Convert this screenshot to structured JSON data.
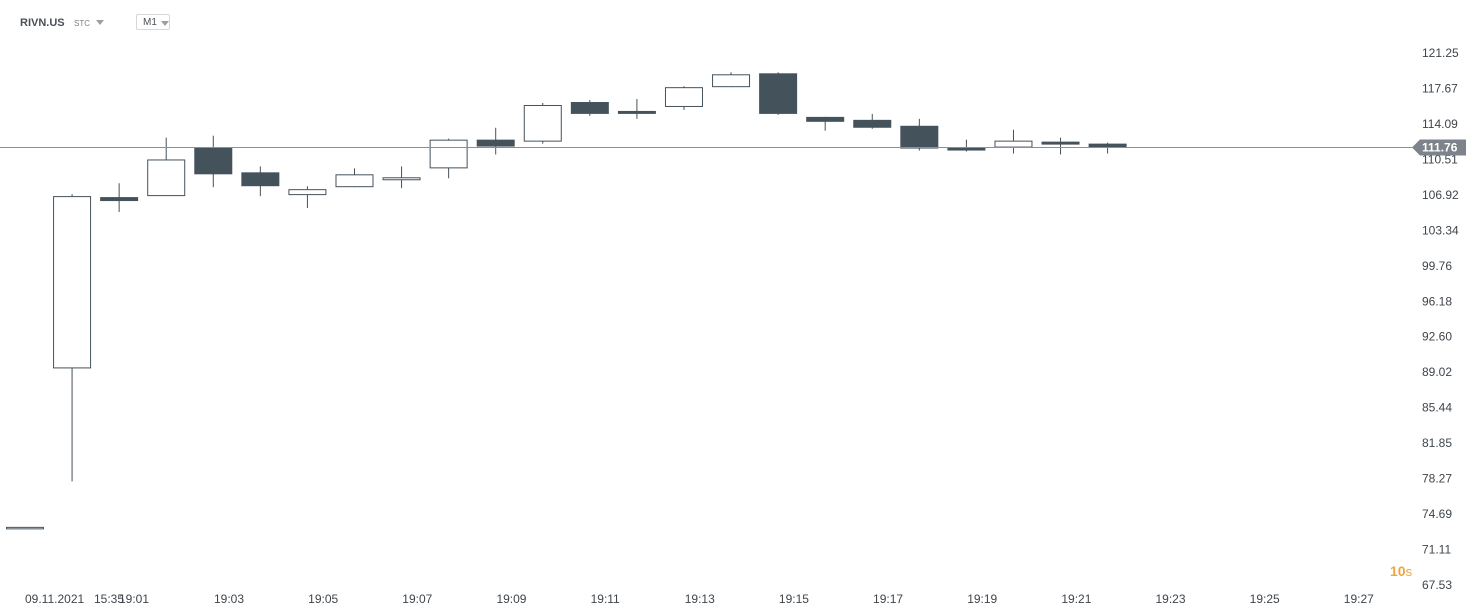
{
  "toolbar": {
    "symbol": "RIVN.US",
    "instrument_type": "STC",
    "timeframe": "M1"
  },
  "countdown": {
    "value": "10",
    "unit": "s"
  },
  "current_price_label": "111.76",
  "colors": {
    "up_fill": "#ffffff",
    "down_fill": "#44525c",
    "outline": "#44525c",
    "price_line": "#8a9096",
    "price_tag_bg": "#7c838a",
    "countdown": "#f0a53a"
  },
  "chart_data": {
    "type": "candlestick",
    "title": "",
    "xlabel": "",
    "ylabel": "",
    "ylim": [
      67.53,
      122.5
    ],
    "y_ticks": [
      "121.25",
      "117.67",
      "114.09",
      "110.51",
      "106.92",
      "103.34",
      "99.76",
      "96.18",
      "92.60",
      "89.02",
      "85.44",
      "81.85",
      "78.27",
      "74.69",
      "71.11",
      "67.53"
    ],
    "x_tick_labels": [
      "09.11.2021",
      "15:35",
      "19:01",
      "19:03",
      "19:05",
      "19:07",
      "19:09",
      "19:11",
      "19:13",
      "19:15",
      "19:17",
      "19:19",
      "19:21",
      "19:23",
      "19:25",
      "19:27"
    ],
    "current_price": 111.76,
    "candles": [
      {
        "time": "09.11.2021",
        "open": 73.4,
        "high": 73.4,
        "low": 73.4,
        "close": 73.4
      },
      {
        "time": "19:00",
        "open": 89.4,
        "high": 107.0,
        "low": 78.0,
        "close": 106.8
      },
      {
        "time": "19:01",
        "open": 106.7,
        "high": 108.1,
        "low": 105.2,
        "close": 106.3
      },
      {
        "time": "19:02",
        "open": 106.8,
        "high": 112.7,
        "low": 106.8,
        "close": 110.5
      },
      {
        "time": "19:03",
        "open": 111.7,
        "high": 112.9,
        "low": 107.7,
        "close": 109.0
      },
      {
        "time": "19:04",
        "open": 109.2,
        "high": 109.8,
        "low": 106.8,
        "close": 107.8
      },
      {
        "time": "19:05",
        "open": 106.9,
        "high": 107.8,
        "low": 105.6,
        "close": 107.5
      },
      {
        "time": "19:06",
        "open": 107.7,
        "high": 109.6,
        "low": 107.7,
        "close": 109.0
      },
      {
        "time": "19:07",
        "open": 108.4,
        "high": 109.8,
        "low": 107.6,
        "close": 108.7
      },
      {
        "time": "19:08",
        "open": 109.6,
        "high": 112.6,
        "low": 108.6,
        "close": 112.5
      },
      {
        "time": "19:09",
        "open": 112.5,
        "high": 113.7,
        "low": 111.0,
        "close": 111.8
      },
      {
        "time": "19:10",
        "open": 112.3,
        "high": 116.2,
        "low": 112.1,
        "close": 116.0
      },
      {
        "time": "19:11",
        "open": 116.3,
        "high": 116.5,
        "low": 114.9,
        "close": 115.1
      },
      {
        "time": "19:12",
        "open": 115.4,
        "high": 116.6,
        "low": 114.6,
        "close": 115.1
      },
      {
        "time": "19:13",
        "open": 115.8,
        "high": 117.9,
        "low": 115.5,
        "close": 117.8
      },
      {
        "time": "19:14",
        "open": 117.8,
        "high": 119.3,
        "low": 117.8,
        "close": 119.1
      },
      {
        "time": "19:15",
        "open": 119.2,
        "high": 119.3,
        "low": 115.0,
        "close": 115.1
      },
      {
        "time": "19:16",
        "open": 114.8,
        "high": 114.8,
        "low": 113.4,
        "close": 114.3
      },
      {
        "time": "19:17",
        "open": 114.5,
        "high": 115.1,
        "low": 113.6,
        "close": 113.7
      },
      {
        "time": "19:18",
        "open": 113.9,
        "high": 114.6,
        "low": 111.4,
        "close": 111.6
      },
      {
        "time": "19:19",
        "open": 111.7,
        "high": 112.5,
        "low": 111.3,
        "close": 111.4
      },
      {
        "time": "19:20",
        "open": 111.7,
        "high": 113.5,
        "low": 111.1,
        "close": 112.4
      },
      {
        "time": "19:21",
        "open": 112.3,
        "high": 112.7,
        "low": 111.0,
        "close": 112.0
      },
      {
        "time": "19:22",
        "open": 112.1,
        "high": 112.2,
        "low": 111.1,
        "close": 111.7
      }
    ]
  }
}
